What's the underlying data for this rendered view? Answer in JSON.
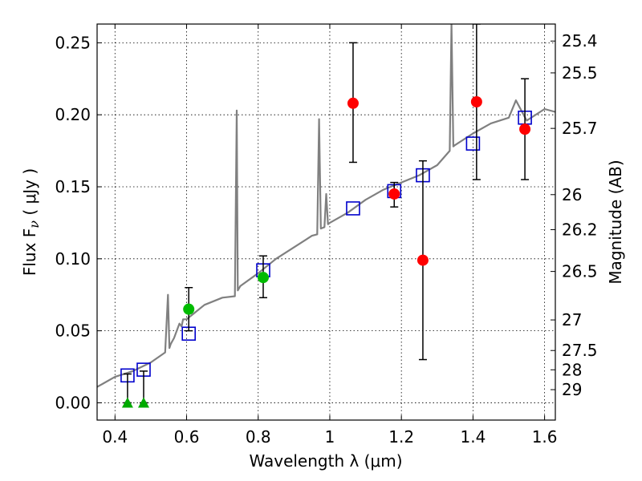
{
  "chart_data": {
    "type": "scatter",
    "xlabel": "Wavelength  λ (μm)",
    "ylabel_left": "Flux  F",
    "ylabel_left_sub": "ν",
    "ylabel_left_unit": "  ( μJy )",
    "ylabel_right": "Magnitude (AB)",
    "xlim": [
      0.35,
      1.63
    ],
    "ylim": [
      -0.012,
      0.263
    ],
    "x_ticks": [
      0.4,
      0.6,
      0.8,
      1.0,
      1.2,
      1.4,
      1.6
    ],
    "x_tick_labels": [
      "0.4",
      "0.6",
      "0.8",
      "1",
      "1.2",
      "1.4",
      "1.6"
    ],
    "y_ticks": [
      0.0,
      0.05,
      0.1,
      0.15,
      0.2,
      0.25
    ],
    "y_tick_labels": [
      "0.00",
      "0.05",
      "0.10",
      "0.15",
      "0.20",
      "0.25"
    ],
    "magnitude_ticks": [
      {
        "label": "25.4",
        "mag": 25.4
      },
      {
        "label": "25.5",
        "mag": 25.5
      },
      {
        "label": "25.7",
        "mag": 25.7
      },
      {
        "label": "26",
        "mag": 26.0
      },
      {
        "label": "26.2",
        "mag": 26.2
      },
      {
        "label": "26.5",
        "mag": 26.5
      },
      {
        "label": "27",
        "mag": 27.0
      },
      {
        "label": "27.5",
        "mag": 27.5
      },
      {
        "label": "28",
        "mag": 28.0
      },
      {
        "label": "29",
        "mag": 29.0
      }
    ],
    "grid": true,
    "series": [
      {
        "name": "model-spectrum",
        "kind": "line",
        "color": "#808080",
        "x": [
          0.35,
          0.4,
          0.45,
          0.5,
          0.54,
          0.548,
          0.552,
          0.556,
          0.565,
          0.58,
          0.586,
          0.59,
          0.6,
          0.62,
          0.65,
          0.7,
          0.735,
          0.74,
          0.743,
          0.75,
          0.8,
          0.85,
          0.9,
          0.95,
          0.965,
          0.97,
          0.975,
          0.985,
          0.99,
          0.995,
          1.0,
          1.05,
          1.1,
          1.15,
          1.2,
          1.25,
          1.3,
          1.335,
          1.34,
          1.345,
          1.35,
          1.4,
          1.45,
          1.5,
          1.52,
          1.55,
          1.6,
          1.63
        ],
        "y": [
          0.011,
          0.018,
          0.022,
          0.028,
          0.035,
          0.075,
          0.038,
          0.041,
          0.045,
          0.055,
          0.053,
          0.058,
          0.058,
          0.062,
          0.068,
          0.073,
          0.074,
          0.203,
          0.078,
          0.081,
          0.09,
          0.1,
          0.108,
          0.116,
          0.117,
          0.197,
          0.121,
          0.122,
          0.145,
          0.124,
          0.125,
          0.132,
          0.141,
          0.148,
          0.153,
          0.158,
          0.165,
          0.175,
          0.263,
          0.178,
          0.179,
          0.187,
          0.194,
          0.198,
          0.21,
          0.196,
          0.204,
          0.202
        ]
      },
      {
        "name": "model-fluxes",
        "kind": "open-square",
        "color": "#0000cc",
        "x": [
          0.435,
          0.48,
          0.606,
          0.814,
          1.065,
          1.18,
          1.26,
          1.4,
          1.545
        ],
        "y": [
          0.019,
          0.023,
          0.048,
          0.092,
          0.135,
          0.147,
          0.158,
          0.18,
          0.198
        ]
      },
      {
        "name": "hst-detections",
        "kind": "filled-circle",
        "color": "#ff0000",
        "x": [
          1.065,
          1.18,
          1.26,
          1.41,
          1.545
        ],
        "y": [
          0.208,
          0.145,
          0.099,
          0.209,
          0.19
        ],
        "err_low": [
          0.167,
          0.136,
          0.03,
          0.155,
          0.155
        ],
        "err_high": [
          0.25,
          0.153,
          0.168,
          0.263,
          0.225
        ]
      },
      {
        "name": "acs-detections",
        "kind": "filled-circle",
        "color": "#00bb00",
        "x": [
          0.606,
          0.814
        ],
        "y": [
          0.065,
          0.087
        ],
        "err_low": [
          0.05,
          0.073
        ],
        "err_high": [
          0.08,
          0.102
        ]
      },
      {
        "name": "upper-limits",
        "kind": "triangle",
        "color": "#00aa00",
        "x": [
          0.435,
          0.48
        ],
        "y": [
          0.0,
          0.0
        ],
        "err_low": [
          0.0,
          0.0
        ],
        "err_high": [
          0.02,
          0.022
        ]
      }
    ]
  }
}
